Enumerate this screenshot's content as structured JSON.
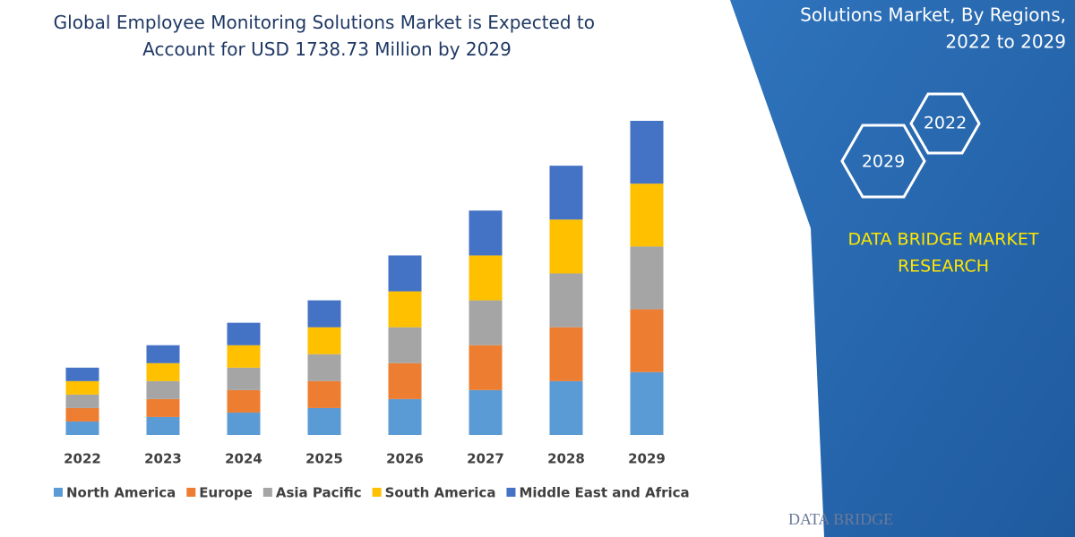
{
  "chart_data": {
    "type": "bar",
    "stacked": true,
    "title": [
      "Global Employee Monitoring Solutions Market is Expected to",
      "Account for USD 1738.73 Million by 2029"
    ],
    "categories": [
      "2022",
      "2023",
      "2024",
      "2025",
      "2026",
      "2027",
      "2028",
      "2029"
    ],
    "series": [
      {
        "name": "North America",
        "color": "#5b9bd5",
        "values": [
          15,
          20,
          25,
          30,
          40,
          50,
          60,
          70
        ]
      },
      {
        "name": "Europe",
        "color": "#ed7d31",
        "values": [
          15,
          20,
          25,
          30,
          40,
          50,
          60,
          70
        ]
      },
      {
        "name": "Asia Pacific",
        "color": "#a5a5a5",
        "values": [
          15,
          20,
          25,
          30,
          40,
          50,
          60,
          70
        ]
      },
      {
        "name": "South America",
        "color": "#ffc000",
        "values": [
          15,
          20,
          25,
          30,
          40,
          50,
          60,
          70
        ]
      },
      {
        "name": "Middle East and Africa",
        "color": "#4472c4",
        "values": [
          15,
          20,
          25,
          30,
          40,
          50,
          60,
          70
        ]
      }
    ],
    "legend": "bottom"
  },
  "panel": {
    "heading": [
      "Solutions Market, By Regions,",
      "2022 to 2029"
    ],
    "hexagons": [
      "2022",
      "2029"
    ],
    "brand": [
      "DATA BRIDGE MARKET",
      "RESEARCH"
    ],
    "logo": "DATA BRIDGE"
  }
}
